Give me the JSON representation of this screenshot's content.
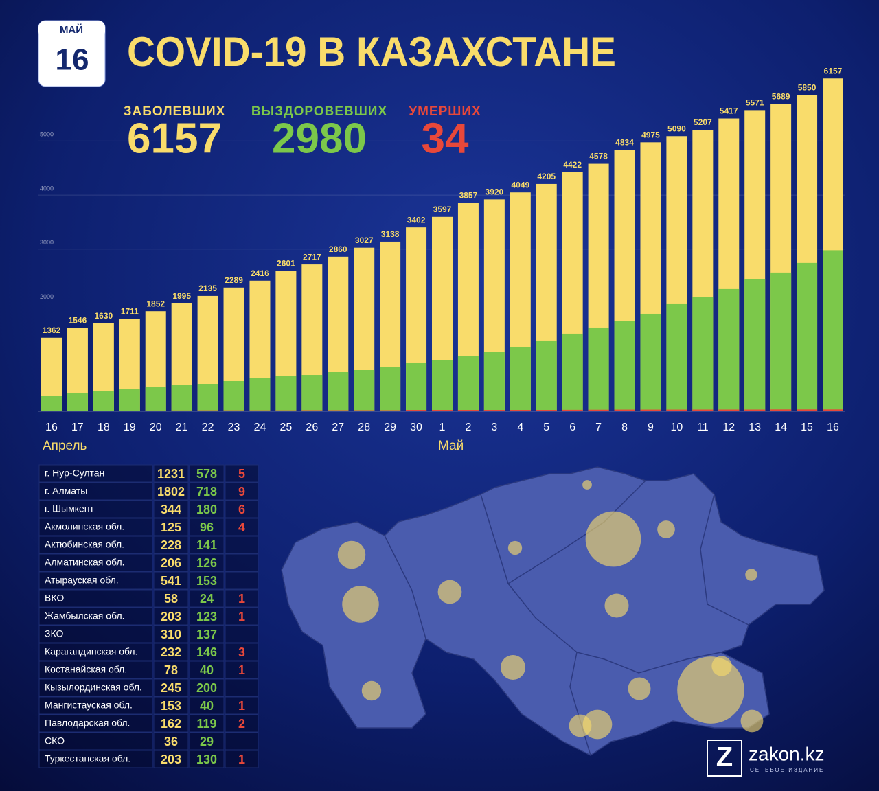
{
  "date": {
    "month": "МАЙ",
    "day": 16
  },
  "title": "COVID-19 В КАЗАХСТАНЕ",
  "chart_data": {
    "type": "bar",
    "categories": [
      "16",
      "17",
      "18",
      "19",
      "20",
      "21",
      "22",
      "23",
      "24",
      "25",
      "26",
      "27",
      "28",
      "29",
      "30",
      "1",
      "2",
      "3",
      "4",
      "5",
      "6",
      "7",
      "8",
      "9",
      "10",
      "11",
      "12",
      "13",
      "14",
      "15",
      "16"
    ],
    "month_labels": [
      "Апрель",
      "Май"
    ],
    "series": [
      {
        "name": "ЗАБОЛЕВШИХ",
        "color": "#f9dc6b",
        "values": [
          1362,
          1546,
          1630,
          1711,
          1852,
          1995,
          2135,
          2289,
          2416,
          2601,
          2717,
          2860,
          3027,
          3138,
          3402,
          3597,
          3857,
          3920,
          4049,
          4205,
          4422,
          4578,
          4834,
          4975,
          5090,
          5207,
          5417,
          5571,
          5689,
          5850,
          6157
        ]
      },
      {
        "name": "ВЫЗДОРОВЕВШИХ",
        "color": "#7cc84a",
        "values": [
          280,
          343,
          381,
          406,
          457,
          483,
          508,
          559,
          610,
          648,
          673,
          724,
          762,
          813,
          902,
          940,
          1017,
          1105,
          1194,
          1309,
          1436,
          1550,
          1665,
          1804,
          1982,
          2109,
          2262,
          2440,
          2567,
          2745,
          2980
        ]
      },
      {
        "name": "УМЕРШИХ",
        "color": "#e8483a",
        "values": [
          10,
          10,
          12,
          13,
          14,
          15,
          17,
          17,
          17,
          17,
          19,
          19,
          19,
          19,
          25,
          25,
          25,
          25,
          25,
          25,
          27,
          29,
          31,
          31,
          31,
          32,
          32,
          32,
          34,
          34,
          34
        ]
      }
    ],
    "ylim": [
      0,
      6300
    ],
    "yticks": [
      2000,
      3000,
      4000,
      5000
    ],
    "grid": true
  },
  "table": {
    "rows": [
      [
        "г. Нур-Султан",
        1231,
        578,
        5
      ],
      [
        "г. Алматы",
        1802,
        718,
        9
      ],
      [
        "г. Шымкент",
        344,
        180,
        6
      ],
      [
        "Акмолинская обл.",
        125,
        96,
        4
      ],
      [
        "Актюбинская обл.",
        228,
        141,
        null
      ],
      [
        "Алматинская обл.",
        206,
        126,
        null
      ],
      [
        "Атырауская обл.",
        541,
        153,
        null
      ],
      [
        "ВКО",
        58,
        24,
        1
      ],
      [
        "Жамбылская обл.",
        203,
        123,
        1
      ],
      [
        "ЗКО",
        310,
        137,
        null
      ],
      [
        "Карагандинская обл.",
        232,
        146,
        3
      ],
      [
        "Костанайская обл.",
        78,
        40,
        1
      ],
      [
        "Кызылординская обл.",
        245,
        200,
        null
      ],
      [
        "Мангистауская обл.",
        153,
        40,
        1
      ],
      [
        "Павлодарская обл.",
        162,
        119,
        2
      ],
      [
        "СКО",
        36,
        29,
        null
      ],
      [
        "Туркестанская обл.",
        203,
        130,
        1
      ]
    ]
  },
  "logo": {
    "mark": "Z",
    "name": "zakon.kz",
    "tagline": "СЕТЕВОЕ ИЗДАНИЕ"
  }
}
